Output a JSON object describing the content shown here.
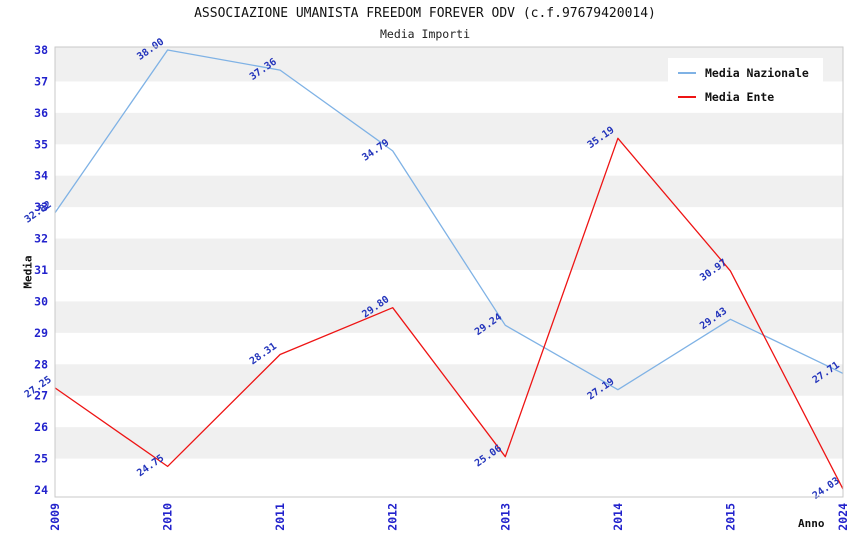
{
  "chart_data": {
    "type": "line",
    "title": "ASSOCIAZIONE UMANISTA FREEDOM FOREVER ODV (c.f.97679420014)",
    "subtitle": "Media Importi",
    "xlabel": "Anno",
    "ylabel": "Media",
    "categories": [
      "2009",
      "2010",
      "2011",
      "2012",
      "2013",
      "2014",
      "2015",
      "2024"
    ],
    "series": [
      {
        "name": "Media Nazionale",
        "color": "#7fb2e5",
        "values": [
          32.82,
          38.0,
          37.36,
          34.79,
          29.24,
          27.19,
          29.43,
          27.71
        ]
      },
      {
        "name": "Media Ente",
        "color": "#ee1414",
        "values": [
          27.25,
          24.75,
          28.31,
          29.8,
          25.06,
          35.19,
          30.97,
          24.03
        ]
      }
    ],
    "ylim": [
      24,
      38
    ],
    "ytick_step": 1,
    "yticks": [
      24,
      25,
      26,
      27,
      28,
      29,
      30,
      31,
      32,
      33,
      34,
      35,
      36,
      37,
      38
    ],
    "legend_position": "top-right",
    "grid": "alternating-horizontal-bands",
    "colors": {
      "tick_label": "#2222cc",
      "value_label": "#2233bb",
      "band": "#f0f0f0",
      "plot_border": "#c9c9c9",
      "background": "#ffffff",
      "title_text": "#111111"
    }
  }
}
